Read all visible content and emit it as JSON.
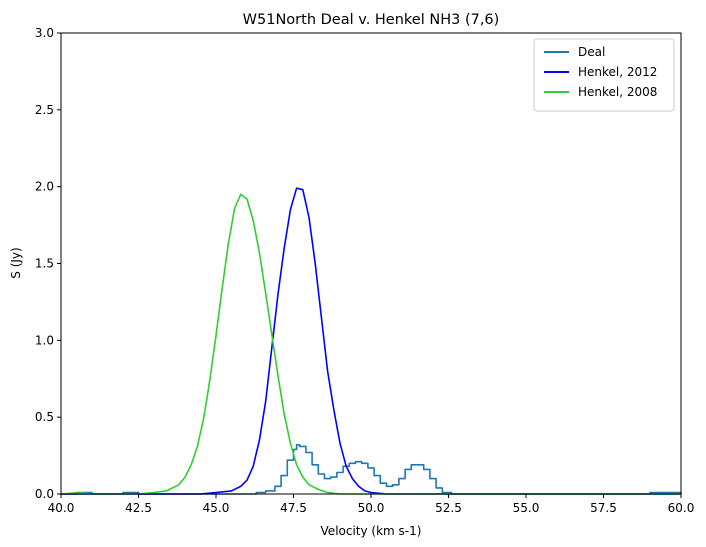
{
  "chart_data": {
    "type": "line",
    "title": "W51North Deal v. Henkel NH3 (7,6)",
    "xlabel": "Velocity (km s-1)",
    "ylabel": "S (Jy)",
    "xlim": [
      40.0,
      60.0
    ],
    "ylim": [
      0.0,
      3.0
    ],
    "xticks": [
      "40.0",
      "42.5",
      "45.0",
      "47.5",
      "50.0",
      "52.5",
      "55.0",
      "57.5",
      "60.0"
    ],
    "yticks": [
      "0.0",
      "0.5",
      "1.0",
      "1.5",
      "2.0",
      "2.5",
      "3.0"
    ],
    "grid": false,
    "legend_position": "top-right",
    "series": [
      {
        "name": "Deal",
        "color": "#1f77b4",
        "style": "steps",
        "x": [
          40.0,
          40.5,
          41.0,
          41.5,
          42.0,
          42.5,
          43.0,
          43.5,
          44.0,
          44.5,
          45.0,
          45.5,
          46.0,
          46.3,
          46.6,
          46.9,
          47.1,
          47.3,
          47.5,
          47.6,
          47.7,
          47.9,
          48.1,
          48.3,
          48.5,
          48.7,
          48.9,
          49.1,
          49.3,
          49.5,
          49.7,
          49.9,
          50.1,
          50.3,
          50.5,
          50.7,
          50.9,
          51.1,
          51.3,
          51.5,
          51.7,
          51.9,
          52.1,
          52.3,
          52.6,
          53.0,
          54.0,
          55.0,
          56.0,
          57.0,
          58.0,
          59.0,
          60.0
        ],
        "y": [
          0.0,
          0.01,
          0.0,
          0.0,
          0.01,
          0.0,
          0.0,
          0.0,
          0.0,
          0.0,
          0.0,
          0.0,
          0.0,
          0.01,
          0.02,
          0.05,
          0.12,
          0.22,
          0.29,
          0.32,
          0.31,
          0.27,
          0.19,
          0.13,
          0.1,
          0.11,
          0.14,
          0.18,
          0.2,
          0.21,
          0.2,
          0.17,
          0.12,
          0.07,
          0.05,
          0.06,
          0.1,
          0.16,
          0.19,
          0.19,
          0.16,
          0.1,
          0.04,
          0.01,
          0.0,
          0.0,
          0.0,
          0.0,
          0.0,
          0.0,
          0.0,
          0.01,
          0.0
        ]
      },
      {
        "name": "Henkel, 2012",
        "color": "#0000ff",
        "style": "line",
        "x": [
          40.0,
          43.0,
          44.5,
          45.0,
          45.5,
          45.8,
          46.0,
          46.2,
          46.4,
          46.6,
          46.8,
          47.0,
          47.2,
          47.4,
          47.6,
          47.8,
          48.0,
          48.2,
          48.4,
          48.6,
          48.8,
          49.0,
          49.2,
          49.4,
          49.6,
          49.8,
          50.0,
          50.5,
          51.0,
          55.0,
          60.0
        ],
        "y": [
          0.0,
          0.0,
          0.0,
          0.01,
          0.02,
          0.05,
          0.09,
          0.18,
          0.35,
          0.6,
          0.95,
          1.3,
          1.6,
          1.85,
          1.99,
          1.98,
          1.8,
          1.5,
          1.15,
          0.8,
          0.55,
          0.33,
          0.18,
          0.1,
          0.05,
          0.02,
          0.01,
          0.0,
          0.0,
          0.0,
          0.0
        ]
      },
      {
        "name": "Henkel, 2008",
        "color": "#32cd32",
        "style": "line",
        "x": [
          40.0,
          40.6,
          41.0,
          42.0,
          42.5,
          43.0,
          43.4,
          43.8,
          44.0,
          44.2,
          44.4,
          44.6,
          44.8,
          45.0,
          45.2,
          45.4,
          45.6,
          45.8,
          46.0,
          46.2,
          46.4,
          46.6,
          46.8,
          47.0,
          47.2,
          47.4,
          47.6,
          47.8,
          48.0,
          48.3,
          48.6,
          49.0,
          49.5,
          50.0,
          55.0,
          60.0
        ],
        "y": [
          0.0,
          0.01,
          0.0,
          0.0,
          0.0,
          0.01,
          0.02,
          0.06,
          0.11,
          0.19,
          0.31,
          0.49,
          0.74,
          1.03,
          1.34,
          1.63,
          1.86,
          1.95,
          1.92,
          1.78,
          1.57,
          1.31,
          1.04,
          0.77,
          0.52,
          0.33,
          0.19,
          0.11,
          0.06,
          0.03,
          0.01,
          0.0,
          0.0,
          0.0,
          0.0,
          0.0
        ]
      }
    ]
  }
}
